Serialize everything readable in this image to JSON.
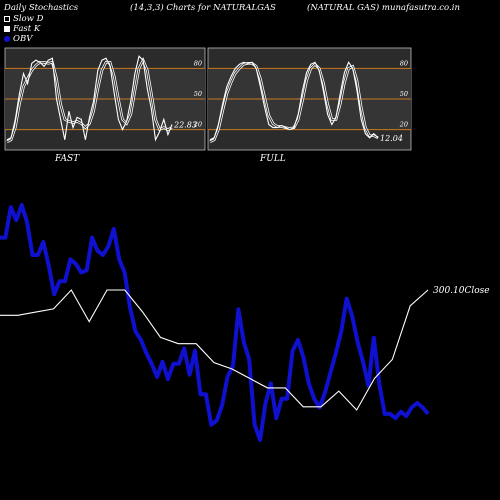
{
  "header": {
    "left": "Daily Stochastics",
    "center": "(14,3,3) Charts for NATURALGAS",
    "right": "(NATURAL GAS) munafasutra.co.in"
  },
  "legend": {
    "slow_d": "Slow  D",
    "fast_k": "Fast K",
    "obv": "OBV"
  },
  "colors": {
    "background": "#000000",
    "panel": "#2b2b2b",
    "level_line": "#c87a1e",
    "stoch_line": "#ffffff",
    "obv_line": "#1010d0",
    "price_line": "#ffffff"
  },
  "chart_data": [
    {
      "type": "line",
      "title": "FAST",
      "ylim": [
        0,
        100
      ],
      "levels": [
        80,
        50,
        20
      ],
      "level_labels": [
        "80",
        "50",
        "20"
      ],
      "last_value_label": "22.83",
      "series": [
        {
          "name": "Fast K",
          "values": [
            10,
            12,
            30,
            55,
            75,
            65,
            85,
            88,
            86,
            82,
            88,
            90,
            50,
            30,
            10,
            38,
            22,
            32,
            30,
            10,
            32,
            48,
            78,
            88,
            90,
            82,
            55,
            30,
            20,
            28,
            48,
            75,
            92,
            88,
            60,
            40,
            10,
            18,
            30,
            15,
            25
          ]
        },
        {
          "name": "Slow  D",
          "values": [
            8,
            10,
            22,
            45,
            62,
            70,
            78,
            83,
            86,
            86,
            85,
            86,
            70,
            45,
            30,
            28,
            27,
            28,
            26,
            22,
            26,
            38,
            60,
            78,
            86,
            86,
            72,
            50,
            30,
            26,
            35,
            58,
            80,
            88,
            78,
            55,
            30,
            20,
            22,
            20,
            22
          ]
        }
      ]
    },
    {
      "type": "line",
      "title": "FULL",
      "ylim": [
        0,
        100
      ],
      "levels": [
        80,
        50,
        20
      ],
      "level_labels": [
        "80",
        "50",
        "20"
      ],
      "last_value_label": "12.04",
      "series": [
        {
          "name": "Fast K",
          "values": [
            10,
            12,
            25,
            45,
            62,
            72,
            80,
            84,
            86,
            85,
            86,
            80,
            62,
            42,
            25,
            22,
            22,
            24,
            22,
            20,
            22,
            35,
            58,
            76,
            84,
            86,
            78,
            58,
            35,
            25,
            32,
            55,
            76,
            86,
            80,
            58,
            30,
            16,
            12,
            16,
            12
          ]
        },
        {
          "name": "Slow  D",
          "values": [
            8,
            10,
            20,
            38,
            55,
            66,
            75,
            80,
            84,
            85,
            85,
            82,
            70,
            52,
            34,
            26,
            23,
            23,
            22,
            21,
            22,
            30,
            48,
            68,
            80,
            84,
            80,
            66,
            45,
            30,
            30,
            45,
            66,
            80,
            82,
            68,
            42,
            22,
            14,
            14,
            12
          ]
        }
      ]
    },
    {
      "type": "line",
      "title": "",
      "last_value_label": "300.10",
      "last_value_suffix": "Close",
      "series": [
        {
          "name": "OBV",
          "values": [
            68,
            68,
            82,
            76,
            83,
            75,
            60,
            60,
            66,
            55,
            42,
            48,
            48,
            58,
            56,
            52,
            53,
            68,
            62,
            60,
            64,
            72,
            58,
            52,
            36,
            25,
            21,
            15,
            10,
            4,
            11,
            3,
            10,
            10,
            17,
            5,
            16,
            -4,
            -4,
            -18,
            -16,
            -9,
            4,
            9,
            35,
            20,
            12,
            -18,
            -25,
            -8,
            1,
            -15,
            -6,
            -6,
            16,
            21,
            13,
            1,
            -6,
            -10,
            -3,
            6,
            15,
            25,
            40,
            32,
            20,
            11,
            0,
            22,
            1,
            -13,
            -13,
            -15,
            -12,
            -14,
            -10,
            -8,
            -10,
            -13,
            -15,
            -16,
            -15,
            -14,
            -12,
            -10,
            -8,
            -6,
            -4,
            -2,
            0,
            -2,
            -4,
            -8,
            -12,
            -16,
            -20,
            -24,
            -28,
            -32,
            -36,
            -40,
            -44,
            -48,
            -52
          ]
        },
        {
          "name": "Close",
          "values": [
            44,
            44,
            45,
            46,
            52,
            42,
            52,
            52,
            45,
            37,
            35,
            35,
            29,
            27,
            24,
            21,
            21,
            15,
            15,
            20,
            14,
            24,
            30,
            47,
            52
          ]
        }
      ]
    }
  ]
}
